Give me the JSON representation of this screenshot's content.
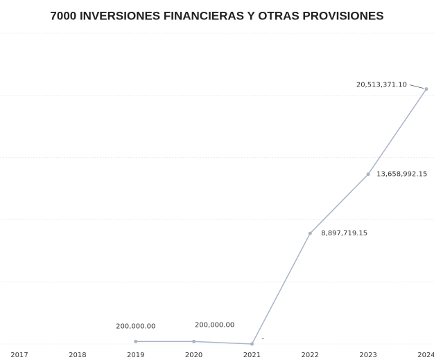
{
  "chart_data": {
    "type": "line",
    "title": "7000 INVERSIONES FINANCIERAS Y OTRAS PROVISIONES",
    "categories": [
      "2017",
      "2018",
      "2019",
      "2020",
      "2021",
      "2022",
      "2023",
      "2024"
    ],
    "values": [
      null,
      null,
      200000,
      200000,
      0,
      8897719.15,
      13658992.15,
      20513371.1
    ],
    "value_labels": [
      null,
      null,
      "200,000.00",
      "200,000.00",
      "-",
      "8,897,719.15",
      "13,658,992.15",
      "20,513,371.10"
    ],
    "color": "#aab4c6",
    "ylim": [
      0,
      25000000
    ],
    "yticks": [
      0,
      5000000,
      10000000,
      15000000,
      20000000,
      25000000
    ],
    "grid": true
  }
}
